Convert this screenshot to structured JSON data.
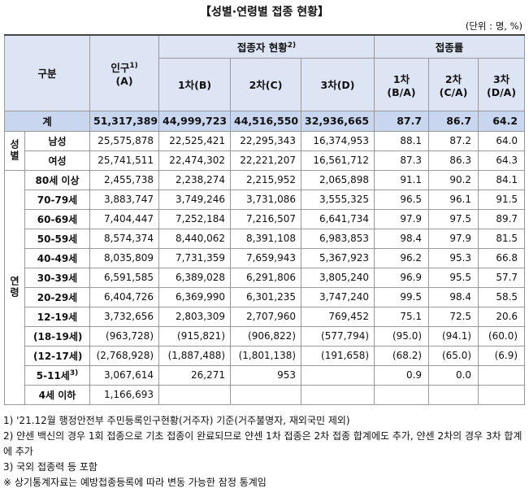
{
  "title": "【성별·연령별 접종 현황】",
  "unit": "(단위 : 명, %)",
  "header": {
    "category": "구분",
    "population": "인구",
    "population_note": "1)",
    "population_sub": "(A)",
    "vaccinated": "접종자 현황",
    "vaccinated_note": "2)",
    "rate": "접종률",
    "vaccinated_cols": [
      "1차(B)",
      "2차(C)",
      "3차(D)"
    ],
    "rate_cols": [
      [
        "1차",
        "(B/A)"
      ],
      [
        "2차",
        "(C/A)"
      ],
      [
        "3차",
        "(D/A)"
      ]
    ]
  },
  "table": {
    "total": {
      "label": "계",
      "values": [
        "51,317,389",
        "44,999,723",
        "44,516,550",
        "32,936,665",
        "87.7",
        "86.7",
        "64.2"
      ]
    },
    "groups": [
      {
        "label": "성별",
        "rows": [
          {
            "label": "남성",
            "values": [
              "25,575,878",
              "22,525,421",
              "22,295,343",
              "16,374,953",
              "88.1",
              "87.2",
              "64.0"
            ]
          },
          {
            "label": "여성",
            "values": [
              "25,741,511",
              "22,474,302",
              "22,221,207",
              "16,561,712",
              "87.3",
              "86.3",
              "64.3"
            ]
          }
        ]
      },
      {
        "label": "연령",
        "rows": [
          {
            "label": "80세 이상",
            "values": [
              "2,455,738",
              "2,238,274",
              "2,215,952",
              "2,065,898",
              "91.1",
              "90.2",
              "84.1"
            ]
          },
          {
            "label": "70-79세",
            "values": [
              "3,883,747",
              "3,749,246",
              "3,731,086",
              "3,555,325",
              "96.5",
              "96.1",
              "91.5"
            ]
          },
          {
            "label": "60-69세",
            "values": [
              "7,404,447",
              "7,252,184",
              "7,216,507",
              "6,641,734",
              "97.9",
              "97.5",
              "89.7"
            ]
          },
          {
            "label": "50-59세",
            "values": [
              "8,574,374",
              "8,440,062",
              "8,391,108",
              "6,983,853",
              "98.4",
              "97.9",
              "81.5"
            ]
          },
          {
            "label": "40-49세",
            "values": [
              "8,035,809",
              "7,731,359",
              "7,659,943",
              "5,367,923",
              "96.2",
              "95.3",
              "66.8"
            ]
          },
          {
            "label": "30-39세",
            "values": [
              "6,591,585",
              "6,389,028",
              "6,291,806",
              "3,805,240",
              "96.9",
              "95.5",
              "57.7"
            ]
          },
          {
            "label": "20-29세",
            "values": [
              "6,404,726",
              "6,369,990",
              "6,301,235",
              "3,747,240",
              "99.5",
              "98.4",
              "58.5"
            ]
          },
          {
            "label": "12-19세",
            "values": [
              "3,732,656",
              "2,803,309",
              "2,707,960",
              "769,452",
              "75.1",
              "72.5",
              "20.6"
            ]
          },
          {
            "label": "(18-19세)",
            "values": [
              "(963,728)",
              "(915,821)",
              "(906,822)",
              "(577,794)",
              "(95.0)",
              "(94.1)",
              "(60.0)"
            ]
          },
          {
            "label": "(12-17세)",
            "values": [
              "(2,768,928)",
              "(1,887,488)",
              "(1,801,138)",
              "(191,658)",
              "(68.2)",
              "(65.0)",
              "(6.9)"
            ]
          },
          {
            "label": "5-11세",
            "note": "3)",
            "values": [
              "3,067,614",
              "26,271",
              "953",
              null,
              "0.9",
              "0.0",
              null
            ]
          },
          {
            "label": "4세 이하",
            "values": [
              "1,166,693",
              null,
              null,
              null,
              null,
              null,
              null
            ]
          }
        ]
      }
    ]
  },
  "notes": [
    "1) '21.12월 행정안전부 주민등록인구현황(거주자) 기준(거주불명자, 재외국민 제외)",
    "2) 얀센 백신의 경우 1회 접종으로 기초 접종이 완료되므로 얀센 1차 접종은 2차 접종 합계에도 추가, 얀센 2차의 경우 3차 합계에 추가",
    "3) 국외 접종력 등 포함",
    "※ 상기통계자료는 예방접종등록에 따라 변동 가능한 잠정 통계임"
  ]
}
